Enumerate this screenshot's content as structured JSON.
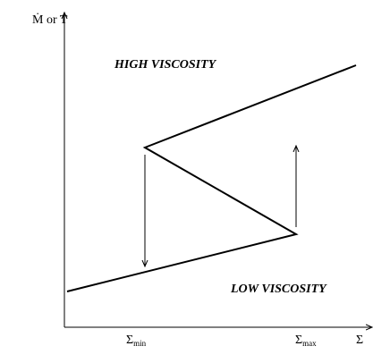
{
  "axes": {
    "y_label": "Ṁ or T",
    "x_label": "Σ"
  },
  "regions": {
    "upper": "HIGH VISCOSITY",
    "lower": "LOW VISCOSITY"
  },
  "ticks": {
    "min": {
      "symbol": "Σ",
      "subscript": "min"
    },
    "max": {
      "symbol": "Σ",
      "subscript": "max"
    }
  }
}
